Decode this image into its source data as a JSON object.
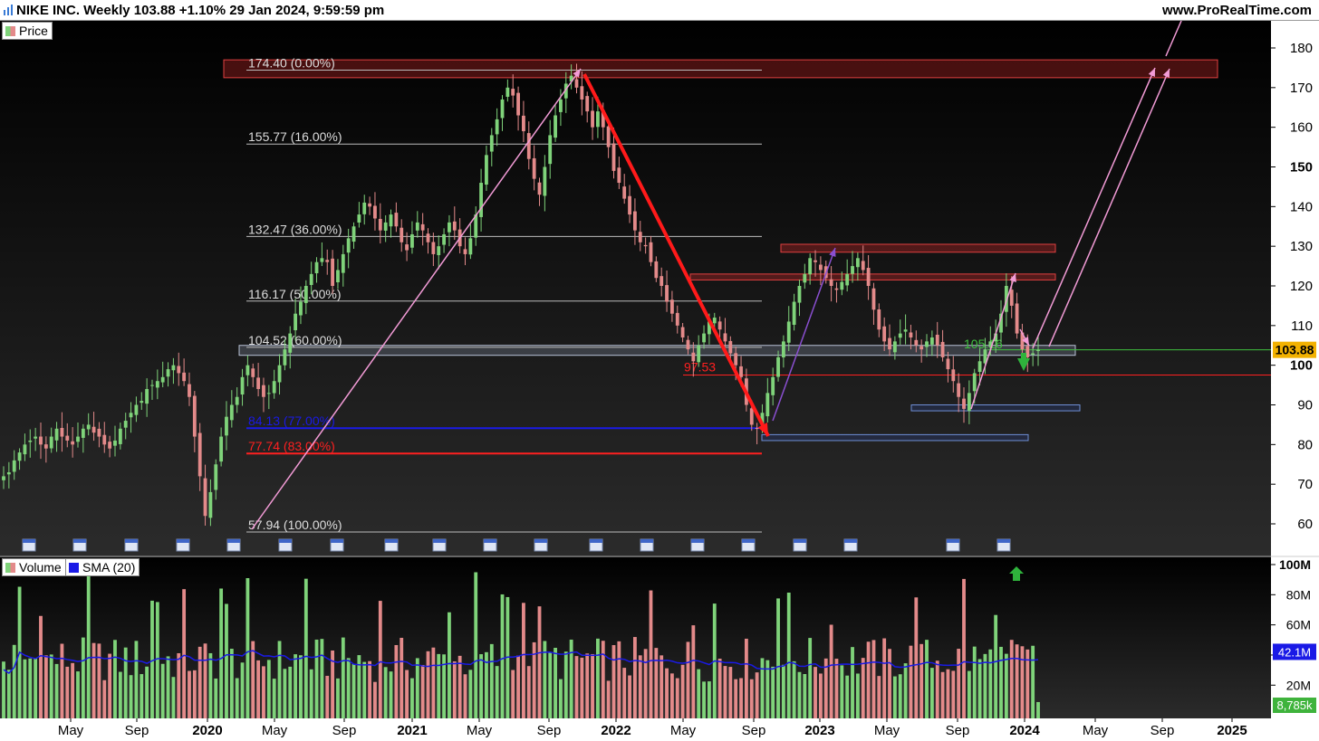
{
  "header": {
    "title": "NIKE INC. Weekly 103.88 +1.10% 29 Jan 2024, 9:59:59 pm",
    "site": "www.ProRealTime.com"
  },
  "legend": {
    "price_label": "Price",
    "volume_label": "Volume",
    "sma_label": "SMA (20)"
  },
  "colors": {
    "background": "#000000",
    "up": "#7fd37a",
    "down": "#e38a8a",
    "sma": "#1a1ae6",
    "pink_line": "#f29bd6",
    "red_arrow": "#ff1a1a",
    "fib_line": "#bbbbbb",
    "blue_level": "#1a1ae6",
    "red_level": "#ff2020",
    "green_level": "#3fc03f"
  },
  "chart_data": [
    {
      "type": "candlestick",
      "title": "NIKE INC. Weekly",
      "x_tick_labels": [
        "May",
        "Sep",
        "2020",
        "May",
        "Sep",
        "2021",
        "May",
        "Sep",
        "2022",
        "May",
        "Sep",
        "2023",
        "May",
        "Sep",
        "2024",
        "May",
        "Sep",
        "2025"
      ],
      "y_tick_labels": [
        "180",
        "170",
        "160",
        "150",
        "140",
        "130",
        "120",
        "110",
        "100",
        "90",
        "80",
        "70",
        "60"
      ],
      "ylim": [
        55,
        183
      ],
      "last_price_label": "103.88",
      "fib_levels": [
        {
          "label": "174.40 (0.00%)",
          "value": 174.4
        },
        {
          "label": "155.77 (16.00%)",
          "value": 155.77
        },
        {
          "label": "132.47 (36.00%)",
          "value": 132.47
        },
        {
          "label": "116.17 (50.00%)",
          "value": 116.17
        },
        {
          "label": "104.52 (60.00%)",
          "value": 104.52
        },
        {
          "label": "84.13 (77.00%)",
          "value": 84.13
        },
        {
          "label": "77.74 (83.00%)",
          "value": 77.74
        },
        {
          "label": "57.94 (100.00%)",
          "value": 57.94
        }
      ],
      "annotations": [
        {
          "label": "97.53",
          "value": 97.53
        },
        {
          "label": "105.16",
          "value": 105.16
        }
      ],
      "zones": [
        {
          "name": "resistance-top",
          "low": 172.5,
          "high": 177.0,
          "color": "red"
        },
        {
          "name": "resistance-2023-high",
          "low": 128.5,
          "high": 130.5,
          "color": "red"
        },
        {
          "name": "resistance-2023-mid",
          "low": 121.5,
          "high": 123.0,
          "color": "red"
        },
        {
          "name": "support-zone",
          "low": 102.5,
          "high": 105.0,
          "color": "gray"
        },
        {
          "name": "support-2023-low",
          "low": 88.5,
          "high": 90.0,
          "color": "blue"
        },
        {
          "name": "support-2022-low",
          "low": 81.0,
          "high": 82.5,
          "color": "blue"
        }
      ],
      "closes_weekly": [
        72,
        73,
        76,
        78,
        80,
        81,
        82,
        80,
        79,
        82,
        84,
        82,
        81,
        80,
        82,
        84,
        85,
        83,
        82,
        80,
        79,
        81,
        84,
        86,
        88,
        90,
        91,
        94,
        95,
        96,
        97,
        99,
        100,
        98,
        96,
        92,
        82,
        72,
        62,
        68,
        75,
        82,
        87,
        90,
        92,
        97,
        100,
        97,
        94,
        92,
        93,
        96,
        100,
        104,
        108,
        113,
        116,
        120,
        123,
        126,
        127,
        126,
        120,
        124,
        128,
        132,
        135,
        138,
        141,
        140,
        137,
        134,
        136,
        138,
        135,
        131,
        129,
        133,
        136,
        134,
        131,
        128,
        130,
        133,
        136,
        134,
        130,
        128,
        132,
        138,
        146,
        153,
        158,
        162,
        167,
        170,
        168,
        163,
        159,
        152,
        147,
        143,
        150,
        158,
        163,
        167,
        171,
        173,
        170,
        167,
        164,
        160,
        164,
        160,
        155,
        149,
        146,
        142,
        138,
        134,
        131,
        130,
        126,
        122,
        120,
        116,
        113,
        110,
        107,
        104,
        101,
        105,
        108,
        111,
        112,
        109,
        106,
        103,
        100,
        97,
        90,
        85,
        84,
        88,
        93,
        97,
        102,
        106,
        111,
        116,
        120,
        123,
        127,
        126,
        124,
        122,
        120,
        119,
        121,
        123,
        125,
        127,
        124,
        120,
        114,
        109,
        106,
        104,
        106,
        108,
        109,
        107,
        105,
        104,
        106,
        107,
        105,
        102,
        99,
        96,
        92,
        89,
        93,
        98,
        101,
        104,
        106,
        108,
        113,
        120,
        115,
        108,
        104,
        102,
        103,
        103.88
      ],
      "volume": {
        "y_tick_labels": [
          "100M",
          "80M",
          "60M",
          "40M",
          "20M"
        ],
        "sma_value_label": "42.1M",
        "last_volume_label": "8,785k"
      }
    }
  ]
}
